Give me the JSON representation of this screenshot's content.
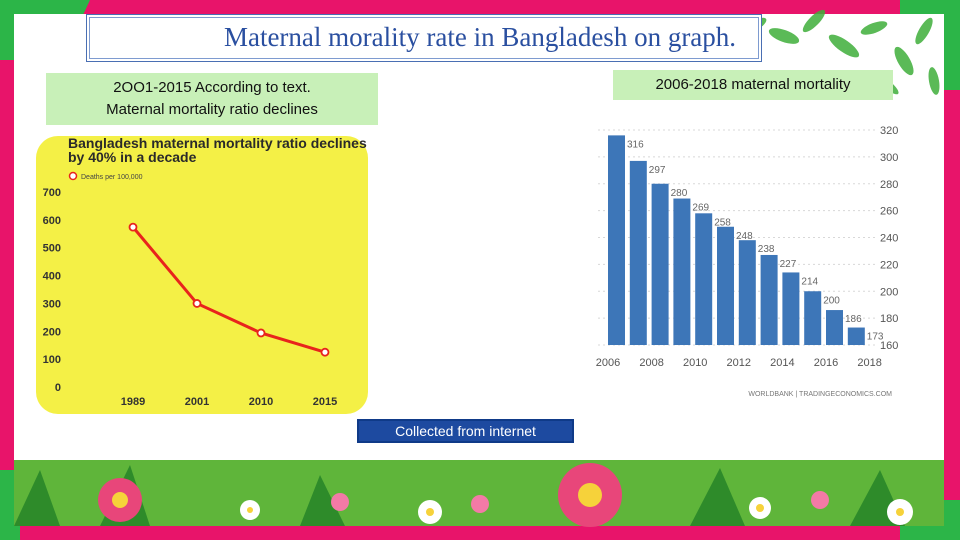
{
  "slide": {
    "title": "Maternal morality rate in Bangladesh on graph.",
    "left_label_line1": "2OO1-2015 According to text.",
    "left_label_line2": "Maternal mortality ratio declines",
    "right_label": "2006-2018 maternal mortality",
    "caption": "Collected from internet"
  },
  "colors": {
    "frame_pink": "#e8146a",
    "frame_green": "#2cb548",
    "label_bg": "#c8f0b8",
    "caption_bg": "#1d4aa0",
    "left_chart_bg": "#f4f046",
    "left_line": "#e8241c",
    "right_bar": "#3d76b8"
  },
  "chart_data": [
    {
      "type": "line",
      "title": "Bangladesh maternal mortality ratio declines by 40% in a decade",
      "legend": "Deaths per 100,000",
      "legend_position": "top-left",
      "categories": [
        "1989",
        "2001",
        "2010",
        "2015"
      ],
      "values": [
        574,
        300,
        194,
        125
      ],
      "ylim": [
        0,
        700
      ],
      "yticks": [
        "0",
        "100",
        "200",
        "300",
        "400",
        "500",
        "600",
        "700"
      ],
      "grid": false
    },
    {
      "type": "bar",
      "categories": [
        "2006",
        "2007",
        "2008",
        "2009",
        "2010",
        "2011",
        "2012",
        "2013",
        "2014",
        "2015",
        "2016",
        "2017"
      ],
      "values": [
        316,
        297,
        280,
        269,
        258,
        248,
        238,
        227,
        214,
        200,
        186,
        173
      ],
      "data_labels": [
        "316",
        "297",
        "280",
        "269",
        "258",
        "248",
        "238",
        "227",
        "214",
        "200",
        "186",
        "173"
      ],
      "xticks": [
        "2006",
        "2008",
        "2010",
        "2012",
        "2014",
        "2016",
        "2018"
      ],
      "yticks": [
        "160",
        "180",
        "200",
        "220",
        "240",
        "260",
        "280",
        "300",
        "320"
      ],
      "ylim": [
        160,
        320
      ],
      "source": "WORLDBANK | TRADINGECONOMICS.COM",
      "grid": true
    }
  ]
}
